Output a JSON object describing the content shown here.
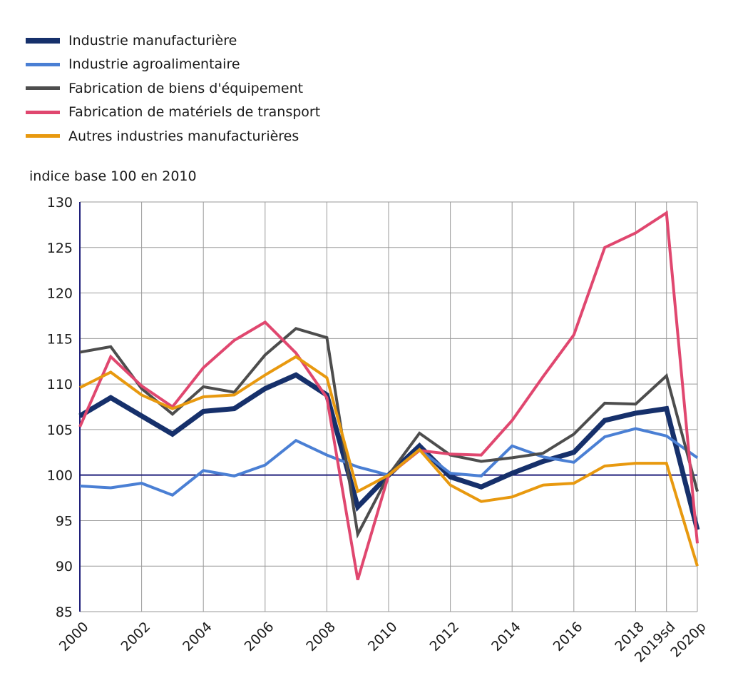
{
  "chart_data": {
    "type": "line",
    "ylabel": "indice base 100 en 2010",
    "ylim": [
      85,
      130
    ],
    "yticks": [
      85,
      90,
      95,
      100,
      105,
      110,
      115,
      120,
      125,
      130
    ],
    "x": [
      "2000",
      "2001",
      "2002",
      "2003",
      "2004",
      "2005",
      "2006",
      "2007",
      "2008",
      "2009",
      "2010",
      "2011",
      "2012",
      "2013",
      "2014",
      "2015",
      "2016",
      "2017",
      "2018",
      "2019sd",
      "2020p"
    ],
    "xtick_labels": [
      "2000",
      "",
      "2002",
      "",
      "2004",
      "",
      "2006",
      "",
      "2008",
      "",
      "2010",
      "",
      "2012",
      "",
      "2014",
      "",
      "2016",
      "",
      "2018",
      "2019sd",
      "2020p"
    ],
    "reference_line": 100,
    "grid": true,
    "legend_position": "top-left",
    "series": [
      {
        "name": "Industrie manufacturière",
        "color": "#16306b",
        "width": 7,
        "values": [
          106.5,
          108.5,
          106.5,
          104.5,
          107,
          107.3,
          109.5,
          111,
          108.8,
          96.5,
          100,
          103.2,
          99.8,
          98.7,
          100.2,
          101.5,
          102.5,
          106,
          106.8,
          107.3,
          94
        ]
      },
      {
        "name": "Industrie agroalimentaire",
        "color": "#4a7fd4",
        "width": 4,
        "values": [
          98.8,
          98.6,
          99.1,
          97.8,
          100.5,
          99.9,
          101.1,
          103.8,
          102.2,
          100.9,
          100,
          102.8,
          100.2,
          99.9,
          103.2,
          102,
          101.4,
          104.2,
          105.1,
          104.3,
          101.9
        ]
      },
      {
        "name": "Fabrication de biens d'équipement",
        "color": "#4d4d4d",
        "width": 4,
        "values": [
          113.5,
          114.1,
          109.5,
          106.7,
          109.7,
          109.1,
          113.2,
          116.1,
          115.1,
          93.5,
          100,
          104.6,
          102.2,
          101.5,
          101.9,
          102.4,
          104.5,
          107.9,
          107.8,
          110.9,
          98.2
        ]
      },
      {
        "name": "Fabrication de matériels de transport",
        "color": "#e0476f",
        "width": 4,
        "values": [
          105.3,
          113,
          109.8,
          107.5,
          111.8,
          114.8,
          116.8,
          113.4,
          108.5,
          88.5,
          100,
          102.7,
          102.3,
          102.2,
          106,
          110.8,
          115.4,
          125,
          126.6,
          128.8,
          92.5
        ]
      },
      {
        "name": "Autres industries manufacturières",
        "color": "#e8990f",
        "width": 4,
        "values": [
          109.6,
          111.3,
          108.8,
          107.3,
          108.6,
          108.8,
          111,
          113,
          110.7,
          98.2,
          100,
          102.8,
          98.9,
          97.1,
          97.6,
          98.9,
          99.1,
          101,
          101.3,
          101.3,
          90
        ]
      }
    ]
  }
}
